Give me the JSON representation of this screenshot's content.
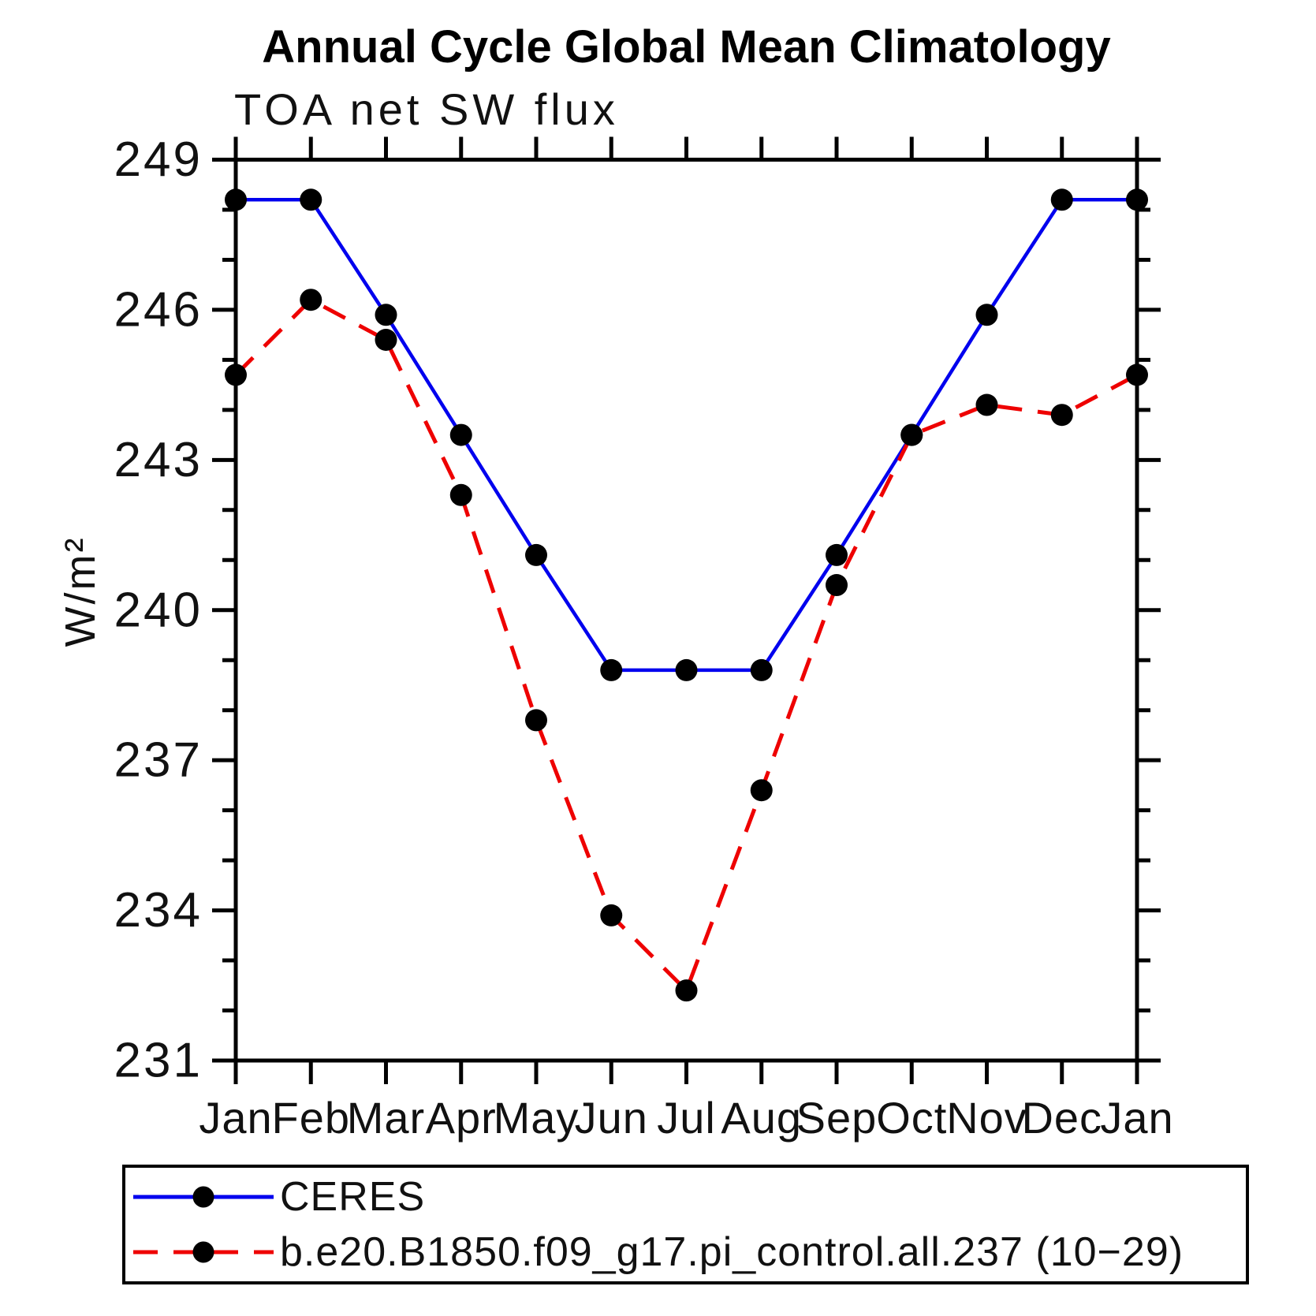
{
  "title": "Annual Cycle Global Mean Climatology",
  "subtitle": "TOA net SW flux",
  "chart_data": {
    "type": "line",
    "title": "Annual Cycle Global Mean Climatology",
    "subtitle": "TOA net SW flux",
    "ylabel": "W/m²",
    "xlabel": "",
    "categories": [
      "Jan",
      "Feb",
      "Mar",
      "Apr",
      "May",
      "Jun",
      "Jul",
      "Aug",
      "Sep",
      "Oct",
      "Nov",
      "Dec",
      "Jan"
    ],
    "ylim": [
      231,
      249
    ],
    "ytick_step": 3,
    "yticks": [
      249,
      246,
      243,
      240,
      237,
      234,
      231
    ],
    "grid": false,
    "legend_position": "bottom",
    "marker": "filled-circle",
    "marker_color": "#000000",
    "series": [
      {
        "name": "CERES",
        "style": "solid",
        "color": "#0000ee",
        "values": [
          248.2,
          248.2,
          245.9,
          243.5,
          241.1,
          238.8,
          238.8,
          238.8,
          241.1,
          243.5,
          245.9,
          248.2,
          248.2
        ]
      },
      {
        "name": "b.e20.B1850.f09_g17.pi_control.all.237 (10−29)",
        "style": "dashed",
        "color": "#ee0000",
        "values": [
          244.7,
          246.2,
          245.4,
          242.3,
          237.8,
          233.9,
          232.4,
          236.4,
          240.5,
          243.5,
          244.1,
          243.9,
          244.7
        ]
      }
    ]
  }
}
